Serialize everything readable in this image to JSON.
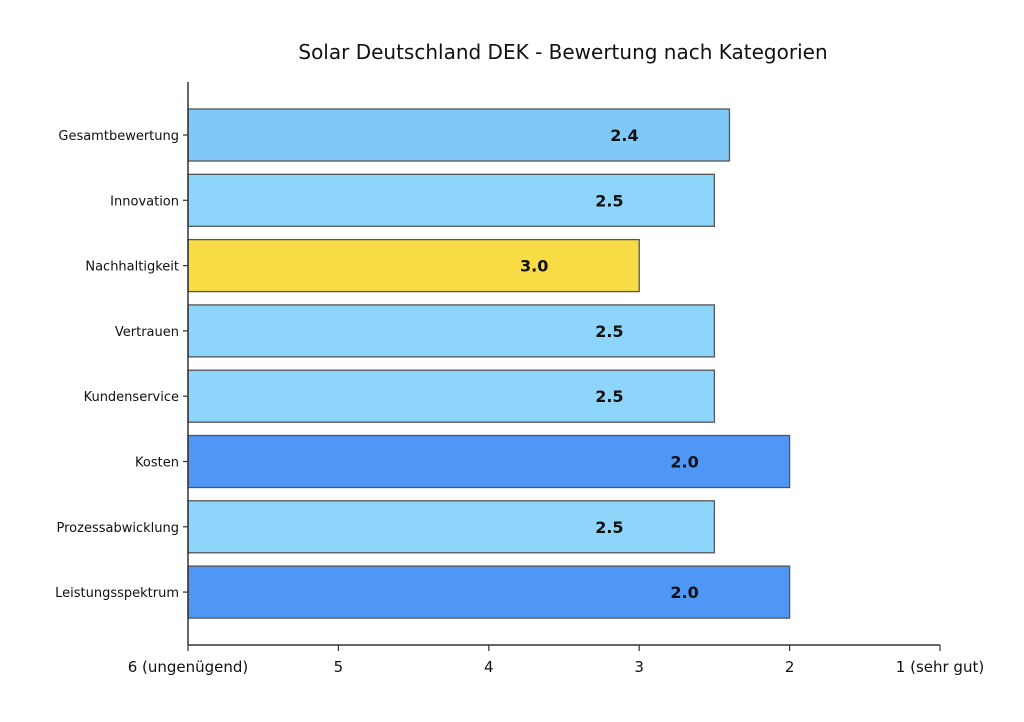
{
  "chart_data": {
    "type": "bar",
    "orientation": "horizontal",
    "title": "Solar Deutschland DEK - Bewertung nach Kategorien",
    "xlabel": "",
    "ylabel": "",
    "x_axis_reversed": true,
    "xlim": [
      6,
      1
    ],
    "x_ticks": [
      {
        "value": 6,
        "label": "6 (ungenügend)"
      },
      {
        "value": 5,
        "label": "5"
      },
      {
        "value": 4,
        "label": "4"
      },
      {
        "value": 3,
        "label": "3"
      },
      {
        "value": 2,
        "label": "2"
      },
      {
        "value": 1,
        "label": "1 (sehr gut)"
      }
    ],
    "grid": false,
    "categories": [
      "Gesamtbewertung",
      "Innovation",
      "Nachhaltigkeit",
      "Vertrauen",
      "Kundenservice",
      "Kosten",
      "Prozessabwicklung",
      "Leistungsspektrum"
    ],
    "values": [
      2.4,
      2.5,
      3.0,
      2.5,
      2.5,
      2.0,
      2.5,
      2.0
    ],
    "data_labels": [
      "2.4",
      "2.5",
      "3.0",
      "2.5",
      "2.5",
      "2.0",
      "2.5",
      "2.0"
    ],
    "bar_colors": [
      "#7fc8f8",
      "#8dd5fa",
      "#f7dc45",
      "#8dd5fa",
      "#8dd5fa",
      "#5096f5",
      "#8dd5fa",
      "#5096f5"
    ],
    "bar_edge_color": "#555555",
    "axis_color": "#333333",
    "text_color": "#111111"
  }
}
